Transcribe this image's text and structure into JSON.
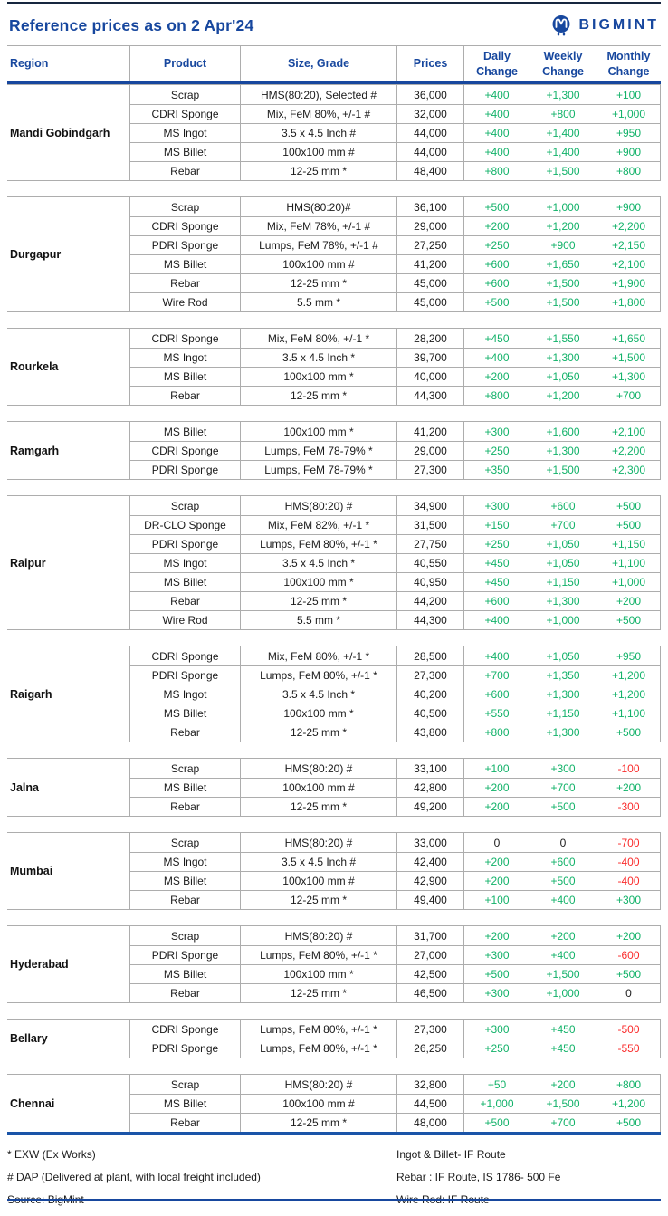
{
  "page": {
    "title": "Reference prices as on 2 Apr'24",
    "brand": "BIGMINT"
  },
  "colors": {
    "accent": "#17479E",
    "green": "#12B269",
    "red": "#FA2B2B",
    "bottom_bar": "#1A54A8",
    "grid_border": "#ADADAD",
    "top_rule": "#16263F"
  },
  "table": {
    "columns": [
      {
        "lines": [
          "Region"
        ]
      },
      {
        "lines": [
          "Product"
        ]
      },
      {
        "lines": [
          "Size, Grade"
        ]
      },
      {
        "lines": [
          "Prices"
        ]
      },
      {
        "lines": [
          "Daily",
          "Change"
        ]
      },
      {
        "lines": [
          "Weekly",
          "Change"
        ]
      },
      {
        "lines": [
          "Monthly",
          "Change"
        ]
      }
    ],
    "regions": [
      {
        "name": "Mandi Gobindgarh",
        "rows": [
          {
            "product": "Scrap",
            "size_grade": "HMS(80:20), Selected #",
            "price": "36,000",
            "daily": "+400",
            "weekly": "+1,300",
            "monthly": "+100"
          },
          {
            "product": "CDRI Sponge",
            "size_grade": "Mix, FeM 80%, +/-1 #",
            "price": "32,000",
            "daily": "+400",
            "weekly": "+800",
            "monthly": "+1,000"
          },
          {
            "product": "MS Ingot",
            "size_grade": "3.5 x 4.5 Inch #",
            "price": "44,000",
            "daily": "+400",
            "weekly": "+1,400",
            "monthly": "+950"
          },
          {
            "product": "MS Billet",
            "size_grade": "100x100 mm #",
            "price": "44,000",
            "daily": "+400",
            "weekly": "+1,400",
            "monthly": "+900"
          },
          {
            "product": "Rebar",
            "size_grade": "12-25 mm *",
            "price": "48,400",
            "daily": "+800",
            "weekly": "+1,500",
            "monthly": "+800"
          }
        ]
      },
      {
        "name": "Durgapur",
        "rows": [
          {
            "product": "Scrap",
            "size_grade": "HMS(80:20)#",
            "price": "36,100",
            "daily": "+500",
            "weekly": "+1,000",
            "monthly": "+900"
          },
          {
            "product": "CDRI Sponge",
            "size_grade": "Mix, FeM 78%, +/-1 #",
            "price": "29,000",
            "daily": "+200",
            "weekly": "+1,200",
            "monthly": "+2,200"
          },
          {
            "product": "PDRI Sponge",
            "size_grade": "Lumps, FeM 78%, +/-1 #",
            "price": "27,250",
            "daily": "+250",
            "weekly": "+900",
            "monthly": "+2,150"
          },
          {
            "product": "MS Billet",
            "size_grade": "100x100 mm #",
            "price": "41,200",
            "daily": "+600",
            "weekly": "+1,650",
            "monthly": "+2,100"
          },
          {
            "product": "Rebar",
            "size_grade": "12-25 mm *",
            "price": "45,000",
            "daily": "+600",
            "weekly": "+1,500",
            "monthly": "+1,900"
          },
          {
            "product": "Wire Rod",
            "size_grade": "5.5 mm *",
            "price": "45,000",
            "daily": "+500",
            "weekly": "+1,500",
            "monthly": "+1,800"
          }
        ]
      },
      {
        "name": "Rourkela",
        "rows": [
          {
            "product": "CDRI Sponge",
            "size_grade": "Mix, FeM 80%, +/-1 *",
            "price": "28,200",
            "daily": "+450",
            "weekly": "+1,550",
            "monthly": "+1,650"
          },
          {
            "product": "MS Ingot",
            "size_grade": "3.5 x 4.5 Inch *",
            "price": "39,700",
            "daily": "+400",
            "weekly": "+1,300",
            "monthly": "+1,500"
          },
          {
            "product": "MS Billet",
            "size_grade": "100x100 mm *",
            "price": "40,000",
            "daily": "+200",
            "weekly": "+1,050",
            "monthly": "+1,300"
          },
          {
            "product": "Rebar",
            "size_grade": "12-25 mm *",
            "price": "44,300",
            "daily": "+800",
            "weekly": "+1,200",
            "monthly": "+700"
          }
        ]
      },
      {
        "name": "Ramgarh",
        "rows": [
          {
            "product": "MS Billet",
            "size_grade": "100x100 mm *",
            "price": "41,200",
            "daily": "+300",
            "weekly": "+1,600",
            "monthly": "+2,100"
          },
          {
            "product": "CDRI Sponge",
            "size_grade": "Lumps, FeM 78-79% *",
            "price": "29,000",
            "daily": "+250",
            "weekly": "+1,300",
            "monthly": "+2,200"
          },
          {
            "product": "PDRI Sponge",
            "size_grade": "Lumps, FeM 78-79% *",
            "price": "27,300",
            "daily": "+350",
            "weekly": "+1,500",
            "monthly": "+2,300"
          }
        ]
      },
      {
        "name": "Raipur",
        "rows": [
          {
            "product": "Scrap",
            "size_grade": "HMS(80:20) #",
            "price": "34,900",
            "daily": "+300",
            "weekly": "+600",
            "monthly": "+500"
          },
          {
            "product": "DR-CLO Sponge",
            "size_grade": "Mix, FeM 82%, +/-1 *",
            "price": "31,500",
            "daily": "+150",
            "weekly": "+700",
            "monthly": "+500"
          },
          {
            "product": "PDRI Sponge",
            "size_grade": "Lumps, FeM 80%, +/-1 *",
            "price": "27,750",
            "daily": "+250",
            "weekly": "+1,050",
            "monthly": "+1,150"
          },
          {
            "product": "MS Ingot",
            "size_grade": "3.5 x 4.5 Inch *",
            "price": "40,550",
            "daily": "+450",
            "weekly": "+1,050",
            "monthly": "+1,100"
          },
          {
            "product": "MS Billet",
            "size_grade": "100x100 mm *",
            "price": "40,950",
            "daily": "+450",
            "weekly": "+1,150",
            "monthly": "+1,000"
          },
          {
            "product": "Rebar",
            "size_grade": "12-25 mm *",
            "price": "44,200",
            "daily": "+600",
            "weekly": "+1,300",
            "monthly": "+200"
          },
          {
            "product": "Wire Rod",
            "size_grade": "5.5 mm *",
            "price": "44,300",
            "daily": "+400",
            "weekly": "+1,000",
            "monthly": "+500"
          }
        ]
      },
      {
        "name": "Raigarh",
        "rows": [
          {
            "product": "CDRI Sponge",
            "size_grade": "Mix, FeM 80%, +/-1 *",
            "price": "28,500",
            "daily": "+400",
            "weekly": "+1,050",
            "monthly": "+950"
          },
          {
            "product": "PDRI Sponge",
            "size_grade": "Lumps, FeM 80%, +/-1 *",
            "price": "27,300",
            "daily": "+700",
            "weekly": "+1,350",
            "monthly": "+1,200"
          },
          {
            "product": "MS Ingot",
            "size_grade": "3.5 x 4.5 Inch *",
            "price": "40,200",
            "daily": "+600",
            "weekly": "+1,300",
            "monthly": "+1,200"
          },
          {
            "product": "MS Billet",
            "size_grade": "100x100 mm *",
            "price": "40,500",
            "daily": "+550",
            "weekly": "+1,150",
            "monthly": "+1,100"
          },
          {
            "product": "Rebar",
            "size_grade": "12-25 mm *",
            "price": "43,800",
            "daily": "+800",
            "weekly": "+1,300",
            "monthly": "+500"
          }
        ]
      },
      {
        "name": "Jalna",
        "rows": [
          {
            "product": "Scrap",
            "size_grade": "HMS(80:20) #",
            "price": "33,100",
            "daily": "+100",
            "weekly": "+300",
            "monthly": "-100"
          },
          {
            "product": "MS Billet",
            "size_grade": "100x100 mm #",
            "price": "42,800",
            "daily": "+200",
            "weekly": "+700",
            "monthly": "+200"
          },
          {
            "product": "Rebar",
            "size_grade": "12-25 mm *",
            "price": "49,200",
            "daily": "+200",
            "weekly": "+500",
            "monthly": "-300"
          }
        ]
      },
      {
        "name": "Mumbai",
        "rows": [
          {
            "product": "Scrap",
            "size_grade": "HMS(80:20) #",
            "price": "33,000",
            "daily": "0",
            "weekly": "0",
            "monthly": "-700"
          },
          {
            "product": "MS Ingot",
            "size_grade": "3.5 x 4.5 Inch #",
            "price": "42,400",
            "daily": "+200",
            "weekly": "+600",
            "monthly": "-400"
          },
          {
            "product": "MS Billet",
            "size_grade": "100x100 mm #",
            "price": "42,900",
            "daily": "+200",
            "weekly": "+500",
            "monthly": "-400"
          },
          {
            "product": "Rebar",
            "size_grade": "12-25 mm *",
            "price": "49,400",
            "daily": "+100",
            "weekly": "+400",
            "monthly": "+300"
          }
        ]
      },
      {
        "name": "Hyderabad",
        "rows": [
          {
            "product": "Scrap",
            "size_grade": "HMS(80:20) #",
            "price": "31,700",
            "daily": "+200",
            "weekly": "+200",
            "monthly": "+200"
          },
          {
            "product": "PDRI Sponge",
            "size_grade": "Lumps, FeM 80%, +/-1 *",
            "price": "27,000",
            "daily": "+300",
            "weekly": "+400",
            "monthly": "-600"
          },
          {
            "product": "MS Billet",
            "size_grade": "100x100 mm *",
            "price": "42,500",
            "daily": "+500",
            "weekly": "+1,500",
            "monthly": "+500"
          },
          {
            "product": "Rebar",
            "size_grade": "12-25 mm *",
            "price": "46,500",
            "daily": "+300",
            "weekly": "+1,000",
            "monthly": "0"
          }
        ]
      },
      {
        "name": "Bellary",
        "rows": [
          {
            "product": "CDRI Sponge",
            "size_grade": "Lumps, FeM 80%, +/-1 *",
            "price": "27,300",
            "daily": "+300",
            "weekly": "+450",
            "monthly": "-500"
          },
          {
            "product": "PDRI Sponge",
            "size_grade": "Lumps, FeM 80%, +/-1 *",
            "price": "26,250",
            "daily": "+250",
            "weekly": "+450",
            "monthly": "-550"
          }
        ]
      },
      {
        "name": "Chennai",
        "rows": [
          {
            "product": "Scrap",
            "size_grade": "HMS(80:20) #",
            "price": "32,800",
            "daily": "+50",
            "weekly": "+200",
            "monthly": "+800"
          },
          {
            "product": "MS Billet",
            "size_grade": "100x100 mm  #",
            "price": "44,500",
            "daily": "+1,000",
            "weekly": "+1,500",
            "monthly": "+1,200"
          },
          {
            "product": "Rebar",
            "size_grade": "12-25 mm *",
            "price": "48,000",
            "daily": "+500",
            "weekly": "+700",
            "monthly": "+500"
          }
        ]
      }
    ]
  },
  "footer": {
    "left": [
      "* EXW (Ex Works)",
      "# DAP (Delivered at plant, with local freight included)",
      "Source: BigMint"
    ],
    "right": [
      "Ingot & Billet- IF Route",
      "Rebar : IF Route, IS 1786- 500 Fe",
      "Wire Rod: IF Route"
    ]
  }
}
